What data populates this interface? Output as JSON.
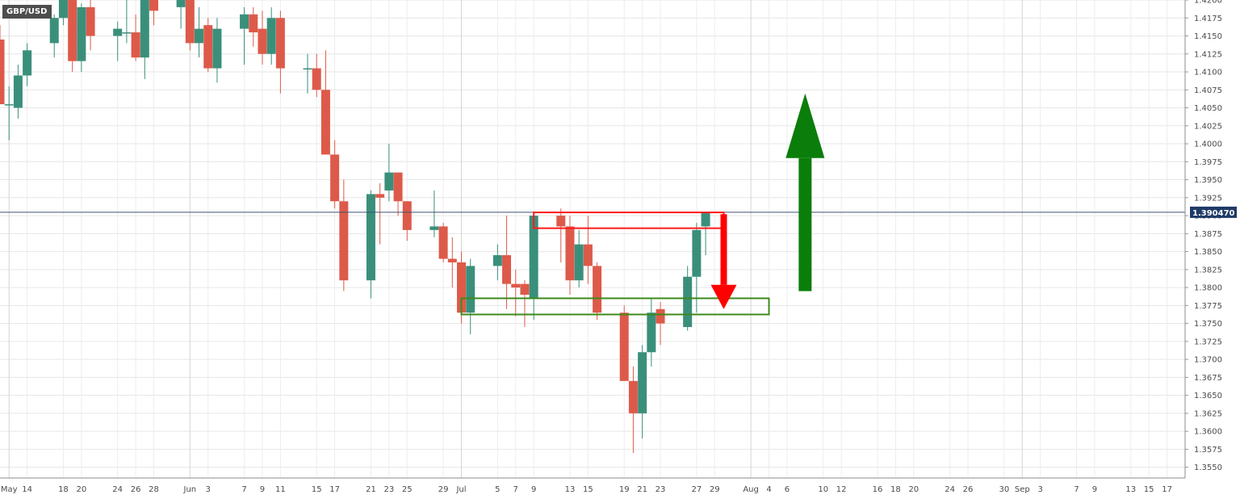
{
  "chart_data": {
    "type": "candlestick",
    "symbol": "GBP/USD",
    "last_price": "1.390470",
    "last_price_value": 1.39047,
    "ylim": [
      1.3535,
      1.42
    ],
    "xlim": [
      "2021-05-11",
      "2021-09-19"
    ],
    "y_ticks": [
      "1.3550",
      "1.3575",
      "1.3600",
      "1.3625",
      "1.3650",
      "1.3675",
      "1.3700",
      "1.3725",
      "1.3750",
      "1.3775",
      "1.3800",
      "1.3825",
      "1.3850",
      "1.3875",
      "1.3900",
      "1.3925",
      "1.3950",
      "1.3975",
      "1.4000",
      "1.4025",
      "1.4050",
      "1.4075",
      "1.4100",
      "1.4125",
      "1.4150",
      "1.4175",
      "1.4200"
    ],
    "x_ticks": [
      {
        "date": "2021-05-12",
        "label": "May"
      },
      {
        "date": "2021-05-14",
        "label": "14"
      },
      {
        "date": "2021-05-18",
        "label": "18"
      },
      {
        "date": "2021-05-20",
        "label": "20"
      },
      {
        "date": "2021-05-24",
        "label": "24"
      },
      {
        "date": "2021-05-26",
        "label": "26"
      },
      {
        "date": "2021-05-28",
        "label": "28"
      },
      {
        "date": "2021-06-01",
        "label": "Jun"
      },
      {
        "date": "2021-06-03",
        "label": "3"
      },
      {
        "date": "2021-06-07",
        "label": "7"
      },
      {
        "date": "2021-06-09",
        "label": "9"
      },
      {
        "date": "2021-06-11",
        "label": "11"
      },
      {
        "date": "2021-06-15",
        "label": "15"
      },
      {
        "date": "2021-06-17",
        "label": "17"
      },
      {
        "date": "2021-06-21",
        "label": "21"
      },
      {
        "date": "2021-06-23",
        "label": "23"
      },
      {
        "date": "2021-06-25",
        "label": "25"
      },
      {
        "date": "2021-06-29",
        "label": "29"
      },
      {
        "date": "2021-07-01",
        "label": "Jul"
      },
      {
        "date": "2021-07-05",
        "label": "5"
      },
      {
        "date": "2021-07-07",
        "label": "7"
      },
      {
        "date": "2021-07-09",
        "label": "9"
      },
      {
        "date": "2021-07-13",
        "label": "13"
      },
      {
        "date": "2021-07-15",
        "label": "15"
      },
      {
        "date": "2021-07-19",
        "label": "19"
      },
      {
        "date": "2021-07-21",
        "label": "21"
      },
      {
        "date": "2021-07-23",
        "label": "23"
      },
      {
        "date": "2021-07-27",
        "label": "27"
      },
      {
        "date": "2021-07-29",
        "label": "29"
      },
      {
        "date": "2021-08-02",
        "label": "Aug"
      },
      {
        "date": "2021-08-04",
        "label": "4"
      },
      {
        "date": "2021-08-06",
        "label": "6"
      },
      {
        "date": "2021-08-10",
        "label": "10"
      },
      {
        "date": "2021-08-12",
        "label": "12"
      },
      {
        "date": "2021-08-16",
        "label": "16"
      },
      {
        "date": "2021-08-18",
        "label": "18"
      },
      {
        "date": "2021-08-20",
        "label": "20"
      },
      {
        "date": "2021-08-24",
        "label": "24"
      },
      {
        "date": "2021-08-26",
        "label": "26"
      },
      {
        "date": "2021-08-30",
        "label": "30"
      },
      {
        "date": "2021-09-01",
        "label": "Sep"
      },
      {
        "date": "2021-09-03",
        "label": "3"
      },
      {
        "date": "2021-09-07",
        "label": "7"
      },
      {
        "date": "2021-09-09",
        "label": "9"
      },
      {
        "date": "2021-09-13",
        "label": "13"
      },
      {
        "date": "2021-09-15",
        "label": "15"
      },
      {
        "date": "2021-09-17",
        "label": "17"
      }
    ],
    "candles": [
      {
        "date": "2021-05-11",
        "o": 1.4145,
        "h": 1.4165,
        "l": 1.406,
        "c": 1.4055
      },
      {
        "date": "2021-05-12",
        "o": 1.4055,
        "h": 1.408,
        "l": 1.4005,
        "c": 1.4055
      },
      {
        "date": "2021-05-13",
        "o": 1.405,
        "h": 1.411,
        "l": 1.4035,
        "c": 1.4095
      },
      {
        "date": "2021-05-14",
        "o": 1.4095,
        "h": 1.414,
        "l": 1.408,
        "c": 1.413
      },
      {
        "date": "2021-05-17",
        "o": 1.414,
        "h": 1.418,
        "l": 1.412,
        "c": 1.4175
      },
      {
        "date": "2021-05-18",
        "o": 1.4175,
        "h": 1.423,
        "l": 1.4165,
        "c": 1.4215
      },
      {
        "date": "2021-05-19",
        "o": 1.421,
        "h": 1.4215,
        "l": 1.41,
        "c": 1.4115
      },
      {
        "date": "2021-05-20",
        "o": 1.4115,
        "h": 1.4195,
        "l": 1.41,
        "c": 1.419
      },
      {
        "date": "2021-05-21",
        "o": 1.419,
        "h": 1.42,
        "l": 1.413,
        "c": 1.415
      },
      {
        "date": "2021-05-24",
        "o": 1.415,
        "h": 1.417,
        "l": 1.4115,
        "c": 1.416
      },
      {
        "date": "2021-05-25",
        "o": 1.4155,
        "h": 1.4205,
        "l": 1.414,
        "c": 1.4155
      },
      {
        "date": "2021-05-26",
        "o": 1.4155,
        "h": 1.418,
        "l": 1.4115,
        "c": 1.412
      },
      {
        "date": "2021-05-27",
        "o": 1.412,
        "h": 1.422,
        "l": 1.409,
        "c": 1.4205
      },
      {
        "date": "2021-05-28",
        "o": 1.4205,
        "h": 1.4215,
        "l": 1.4165,
        "c": 1.4185
      },
      {
        "date": "2021-05-31",
        "o": 1.419,
        "h": 1.4215,
        "l": 1.416,
        "c": 1.4205
      },
      {
        "date": "2021-06-01",
        "o": 1.4205,
        "h": 1.422,
        "l": 1.413,
        "c": 1.414
      },
      {
        "date": "2021-06-02",
        "o": 1.414,
        "h": 1.419,
        "l": 1.412,
        "c": 1.416
      },
      {
        "date": "2021-06-03",
        "o": 1.4165,
        "h": 1.4175,
        "l": 1.41,
        "c": 1.4105
      },
      {
        "date": "2021-06-04",
        "o": 1.4105,
        "h": 1.4175,
        "l": 1.4085,
        "c": 1.416
      },
      {
        "date": "2021-06-07",
        "o": 1.416,
        "h": 1.419,
        "l": 1.411,
        "c": 1.418
      },
      {
        "date": "2021-06-08",
        "o": 1.418,
        "h": 1.419,
        "l": 1.4135,
        "c": 1.4155
      },
      {
        "date": "2021-06-09",
        "o": 1.416,
        "h": 1.4185,
        "l": 1.411,
        "c": 1.4125
      },
      {
        "date": "2021-06-10",
        "o": 1.4125,
        "h": 1.419,
        "l": 1.411,
        "c": 1.4175
      },
      {
        "date": "2021-06-11",
        "o": 1.4175,
        "h": 1.4185,
        "l": 1.407,
        "c": 1.4105
      },
      {
        "date": "2021-06-14",
        "o": 1.4105,
        "h": 1.4125,
        "l": 1.407,
        "c": 1.4105
      },
      {
        "date": "2021-06-15",
        "o": 1.4105,
        "h": 1.4125,
        "l": 1.4065,
        "c": 1.4075
      },
      {
        "date": "2021-06-16",
        "o": 1.4075,
        "h": 1.413,
        "l": 1.399,
        "c": 1.3985
      },
      {
        "date": "2021-06-17",
        "o": 1.3985,
        "h": 1.4005,
        "l": 1.391,
        "c": 1.392
      },
      {
        "date": "2021-06-18",
        "o": 1.392,
        "h": 1.395,
        "l": 1.3795,
        "c": 1.381
      },
      {
        "date": "2021-06-21",
        "o": 1.381,
        "h": 1.3935,
        "l": 1.3785,
        "c": 1.393
      },
      {
        "date": "2021-06-22",
        "o": 1.393,
        "h": 1.3945,
        "l": 1.386,
        "c": 1.3925
      },
      {
        "date": "2021-06-23",
        "o": 1.3935,
        "h": 1.4,
        "l": 1.392,
        "c": 1.396
      },
      {
        "date": "2021-06-24",
        "o": 1.396,
        "h": 1.396,
        "l": 1.39,
        "c": 1.392
      },
      {
        "date": "2021-06-25",
        "o": 1.392,
        "h": 1.392,
        "l": 1.3865,
        "c": 1.388
      },
      {
        "date": "2021-06-28",
        "o": 1.388,
        "h": 1.3935,
        "l": 1.387,
        "c": 1.3885
      },
      {
        "date": "2021-06-29",
        "o": 1.3885,
        "h": 1.389,
        "l": 1.3835,
        "c": 1.384
      },
      {
        "date": "2021-06-30",
        "o": 1.384,
        "h": 1.387,
        "l": 1.38,
        "c": 1.3835
      },
      {
        "date": "2021-07-01",
        "o": 1.3835,
        "h": 1.385,
        "l": 1.375,
        "c": 1.3765
      },
      {
        "date": "2021-07-02",
        "o": 1.3765,
        "h": 1.384,
        "l": 1.3735,
        "c": 1.383
      },
      {
        "date": "2021-07-05",
        "o": 1.383,
        "h": 1.386,
        "l": 1.381,
        "c": 1.3845
      },
      {
        "date": "2021-07-06",
        "o": 1.3845,
        "h": 1.39,
        "l": 1.377,
        "c": 1.3805
      },
      {
        "date": "2021-07-07",
        "o": 1.3805,
        "h": 1.3825,
        "l": 1.376,
        "c": 1.38
      },
      {
        "date": "2021-07-08",
        "o": 1.3805,
        "h": 1.381,
        "l": 1.3745,
        "c": 1.379
      },
      {
        "date": "2021-07-09",
        "o": 1.3785,
        "h": 1.3905,
        "l": 1.3755,
        "c": 1.39
      },
      {
        "date": "2021-07-12",
        "o": 1.39,
        "h": 1.391,
        "l": 1.3835,
        "c": 1.3885
      },
      {
        "date": "2021-07-13",
        "o": 1.3885,
        "h": 1.39,
        "l": 1.379,
        "c": 1.381
      },
      {
        "date": "2021-07-14",
        "o": 1.381,
        "h": 1.388,
        "l": 1.38,
        "c": 1.386
      },
      {
        "date": "2021-07-15",
        "o": 1.386,
        "h": 1.39,
        "l": 1.3805,
        "c": 1.383
      },
      {
        "date": "2021-07-16",
        "o": 1.383,
        "h": 1.3835,
        "l": 1.3755,
        "c": 1.3765
      },
      {
        "date": "2021-07-19",
        "o": 1.3765,
        "h": 1.3775,
        "l": 1.367,
        "c": 1.367
      },
      {
        "date": "2021-07-20",
        "o": 1.367,
        "h": 1.369,
        "l": 1.357,
        "c": 1.3625
      },
      {
        "date": "2021-07-21",
        "o": 1.3625,
        "h": 1.372,
        "l": 1.359,
        "c": 1.371
      },
      {
        "date": "2021-07-22",
        "o": 1.371,
        "h": 1.3785,
        "l": 1.369,
        "c": 1.3765
      },
      {
        "date": "2021-07-23",
        "o": 1.377,
        "h": 1.378,
        "l": 1.372,
        "c": 1.375
      },
      {
        "date": "2021-07-26",
        "o": 1.3745,
        "h": 1.383,
        "l": 1.374,
        "c": 1.3815
      },
      {
        "date": "2021-07-27",
        "o": 1.3815,
        "h": 1.389,
        "l": 1.3765,
        "c": 1.388
      },
      {
        "date": "2021-07-28",
        "o": 1.3885,
        "h": 1.3905,
        "l": 1.3845,
        "c": 1.3905
      }
    ],
    "annotations": {
      "resistance_zone": {
        "x0": "2021-07-09",
        "x1": "2021-07-30",
        "y0": 1.38825,
        "y1": 1.39045,
        "color": "#ff1a1a"
      },
      "support_zone": {
        "x0": "2021-07-01",
        "x1": "2021-08-04",
        "y0": 1.37625,
        "y1": 1.3785,
        "color": "#3d8b1a"
      },
      "down_arrow": {
        "date": "2021-07-30",
        "from": 1.3902,
        "to": 1.377,
        "color": "#ff0000"
      },
      "up_arrow": {
        "date": "2021-08-08",
        "from": 1.3795,
        "to": 1.407,
        "color": "#0a7d0a"
      }
    }
  }
}
